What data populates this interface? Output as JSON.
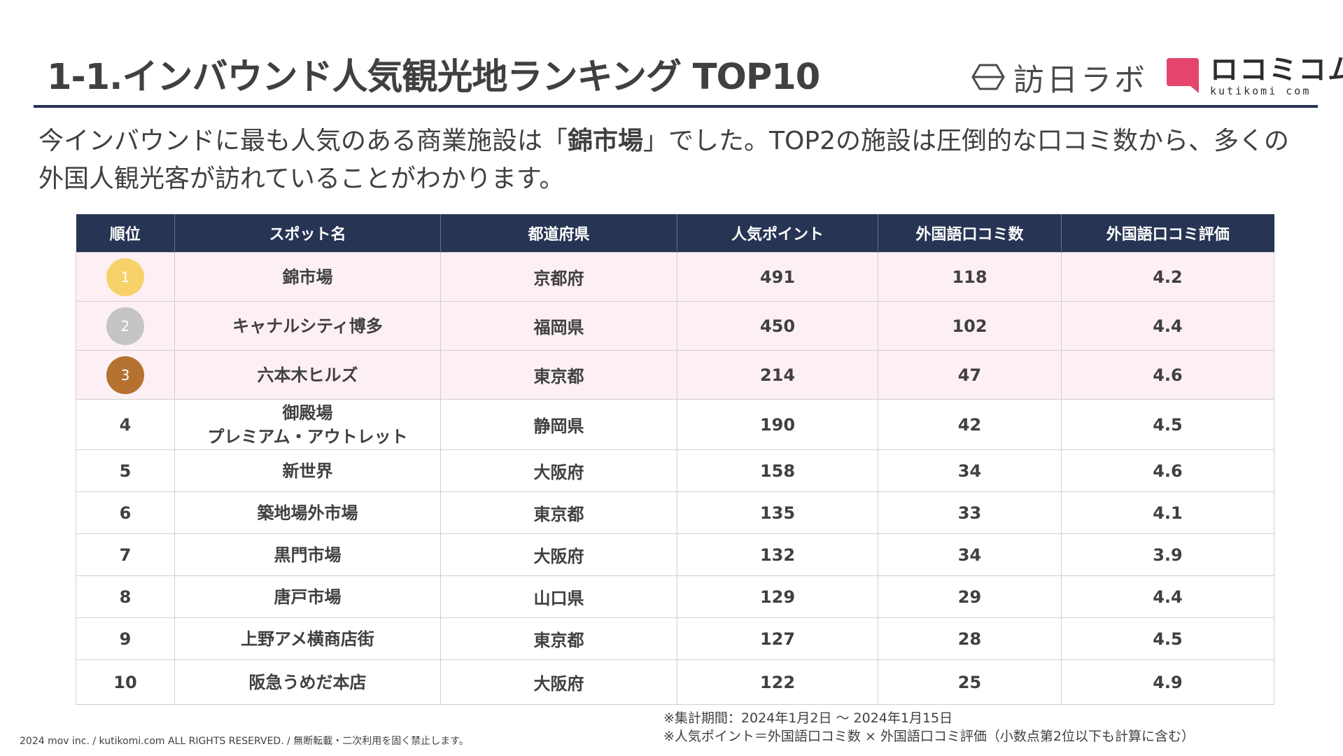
{
  "header": {
    "title": "1-1.インバウンド人気観光地ランキング TOP10",
    "logo_lab": "訪日ラボ",
    "logo_kuti_main": "ロコミコム",
    "logo_kuti_sub": "kutikomi com"
  },
  "lead": {
    "before": "今インバウンドに最も人気のある商業施設は「",
    "highlight": "錦市場",
    "after": "」でした。TOP2の施設は圧倒的な口コミ数から、多くの外国人観光客が訪れていることがわかります。"
  },
  "table": {
    "headers": [
      "順位",
      "スポット名",
      "都道府県",
      "人気ポイント",
      "外国語口コミ数",
      "外国語口コミ評価"
    ],
    "rows": [
      {
        "rank": "1",
        "spot": "錦市場",
        "spot2": "",
        "pref": "京都府",
        "points": "491",
        "reviews": "118",
        "rating": "4.2",
        "medal": "gold"
      },
      {
        "rank": "2",
        "spot": "キャナルシティ博多",
        "spot2": "",
        "pref": "福岡県",
        "points": "450",
        "reviews": "102",
        "rating": "4.4",
        "medal": "silver"
      },
      {
        "rank": "3",
        "spot": "六本木ヒルズ",
        "spot2": "",
        "pref": "東京都",
        "points": "214",
        "reviews": "47",
        "rating": "4.6",
        "medal": "bronze"
      },
      {
        "rank": "4",
        "spot": "御殿場",
        "spot2": "プレミアム・アウトレット",
        "pref": "静岡県",
        "points": "190",
        "reviews": "42",
        "rating": "4.5",
        "medal": ""
      },
      {
        "rank": "5",
        "spot": "新世界",
        "spot2": "",
        "pref": "大阪府",
        "points": "158",
        "reviews": "34",
        "rating": "4.6",
        "medal": ""
      },
      {
        "rank": "6",
        "spot": "築地場外市場",
        "spot2": "",
        "pref": "東京都",
        "points": "135",
        "reviews": "33",
        "rating": "4.1",
        "medal": ""
      },
      {
        "rank": "7",
        "spot": "黒門市場",
        "spot2": "",
        "pref": "大阪府",
        "points": "132",
        "reviews": "34",
        "rating": "3.9",
        "medal": ""
      },
      {
        "rank": "8",
        "spot": "唐戸市場",
        "spot2": "",
        "pref": "山口県",
        "points": "129",
        "reviews": "29",
        "rating": "4.4",
        "medal": ""
      },
      {
        "rank": "9",
        "spot": "上野アメ横商店街",
        "spot2": "",
        "pref": "東京都",
        "points": "127",
        "reviews": "28",
        "rating": "4.5",
        "medal": ""
      },
      {
        "rank": "10",
        "spot": "阪急うめだ本店",
        "spot2": "",
        "pref": "大阪府",
        "points": "122",
        "reviews": "25",
        "rating": "4.9",
        "medal": ""
      }
    ]
  },
  "notes": {
    "period": "※集計期間：2024年1月2日 〜 2024年1月15日",
    "formula": "※人気ポイント＝外国語口コミ数 × 外国語口コミ評価（小数点第2位以下も計算に含む）"
  },
  "footer": "2024 mov inc. / kutikomi.com ALL RIGHTS RESERVED. / 無断転載・二次利用を固く禁止します。",
  "colors": {
    "navy": "#273453",
    "pink_row": "#fdf0f4",
    "gold": "#f7d16a",
    "silver": "#c4c4c4",
    "bronze": "#b5712f",
    "kuti_pink": "#e5456c"
  }
}
